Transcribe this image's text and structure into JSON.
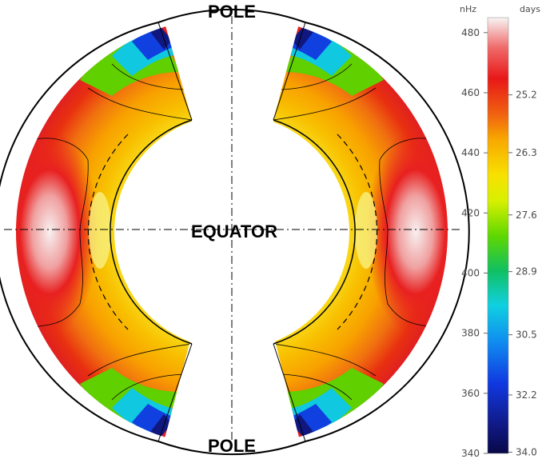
{
  "labels": {
    "top": "POLE",
    "bottom": "POLE",
    "center": "EQUATOR"
  },
  "colorbar": {
    "left_unit": "nHz",
    "right_unit": "days",
    "left_ticks": [
      "480",
      "460",
      "440",
      "420",
      "400",
      "380",
      "360",
      "340"
    ],
    "right_ticks": [
      "25.2",
      "26.3",
      "27.6",
      "28.9",
      "30.5",
      "32.2",
      "34.0"
    ],
    "left_range": [
      340,
      485
    ],
    "colors": [
      "#f8f8f8",
      "#f6c6c6",
      "#f04040",
      "#e01010",
      "#f07010",
      "#f8b000",
      "#f8e000",
      "#c8e800",
      "#40d000",
      "#10c080",
      "#10c8e8",
      "#1088f0",
      "#1030d0",
      "#101870",
      "#080848"
    ]
  },
  "chart_data": {
    "type": "heatmap",
    "title": "",
    "colorbar_left_unit": "nHz",
    "colorbar_right_unit": "days",
    "colorbar_left_ticks": [
      480,
      460,
      440,
      420,
      400,
      380,
      360,
      340
    ],
    "colorbar_right_ticks": [
      25.2,
      26.3,
      27.6,
      28.9,
      30.5,
      32.2,
      34.0
    ],
    "value_range_nhz": [
      340,
      485
    ],
    "region": "solar interior, meridional cross-section, pole to pole"
  }
}
